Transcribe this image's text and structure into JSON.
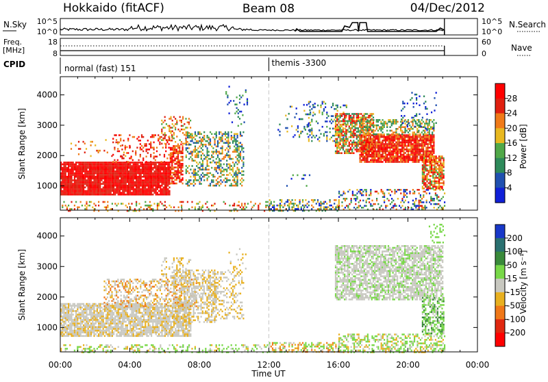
{
  "header": {
    "station": "Hokkaido (fitACF)",
    "beam": "Beam 08",
    "date": "04/Dec/2012"
  },
  "nsky_panel": {
    "left_label": "N.Sky",
    "right_label": "N.Search",
    "left_ticks": [
      "10^5",
      "10^0"
    ],
    "right_ticks": [
      "10^5",
      "10^0"
    ]
  },
  "freq_panel": {
    "left_label_line1": "Freq.",
    "left_label_line2": "[MHz]",
    "right_label": "Nave",
    "left_ticks": [
      "18",
      "8"
    ],
    "right_ticks": [
      "60",
      "0"
    ]
  },
  "cpid_panel": {
    "label": "CPID",
    "segments": [
      {
        "start_hour": 0.0,
        "text": "normal (fast) 151"
      },
      {
        "start_hour": 12.0,
        "text": "themis -3300"
      }
    ]
  },
  "time_axis": {
    "title": "Time UT",
    "ticks": [
      "00:00",
      "04:00",
      "08:00",
      "12:00",
      "16:00",
      "20:00",
      "00:00"
    ]
  },
  "chart_data": [
    {
      "type": "heatmap",
      "name": "power",
      "ylabel": "Slant Range [km]",
      "y_ticks": [
        1000,
        2000,
        3000,
        4000
      ],
      "ylim": [
        200,
        4600
      ],
      "xlim_hours": [
        0,
        24
      ],
      "data_end_hour": 22.1,
      "colorbar_label": "Power [dB]",
      "colorbar_ticks": [
        "28",
        "24",
        "20",
        "16",
        "12",
        "8",
        "4"
      ],
      "colors": [
        "#1020d8",
        "#2050b0",
        "#2e8a5a",
        "#50a848",
        "#e8b820",
        "#f07a18",
        "#e02010",
        "#ff0000"
      ],
      "scatter_regions": [
        {
          "h0": 0.0,
          "h1": 6.3,
          "r0": 700,
          "r1": 1800,
          "d": 0.95,
          "c": [
            6,
            7
          ]
        },
        {
          "h0": 6.3,
          "h1": 7.0,
          "r0": 1100,
          "r1": 2400,
          "d": 0.7,
          "c": [
            5,
            6,
            7
          ]
        },
        {
          "h0": 3.0,
          "h1": 6.5,
          "r0": 1800,
          "r1": 2700,
          "d": 0.2,
          "c": [
            5,
            6,
            7
          ]
        },
        {
          "h0": 0.5,
          "h1": 4.0,
          "r0": 2000,
          "r1": 2600,
          "d": 0.07,
          "c": [
            4,
            5,
            6
          ]
        },
        {
          "h0": 5.8,
          "h1": 7.5,
          "r0": 2400,
          "r1": 3300,
          "d": 0.3,
          "c": [
            3,
            4,
            5,
            6
          ]
        },
        {
          "h0": 7.2,
          "h1": 10.5,
          "r0": 1000,
          "r1": 2800,
          "d": 0.4,
          "c": [
            1,
            2,
            3,
            4,
            5
          ]
        },
        {
          "h0": 9.5,
          "h1": 10.8,
          "r0": 3000,
          "r1": 4300,
          "d": 0.12,
          "c": [
            0,
            1,
            2,
            3
          ]
        },
        {
          "h0": 12.0,
          "h1": 16.0,
          "r0": 200,
          "r1": 560,
          "d": 0.45,
          "c": [
            0,
            1,
            2,
            3,
            4,
            5
          ]
        },
        {
          "h0": 16.0,
          "h1": 22.1,
          "r0": 200,
          "r1": 900,
          "d": 0.3,
          "c": [
            0,
            1,
            2,
            3,
            4,
            5,
            6
          ]
        },
        {
          "h0": 0.0,
          "h1": 12.0,
          "r0": 200,
          "r1": 500,
          "d": 0.2,
          "c": [
            3,
            4,
            5,
            6
          ]
        },
        {
          "h0": 12.5,
          "h1": 14.5,
          "r0": 2600,
          "r1": 3700,
          "d": 0.1,
          "c": [
            0,
            1,
            2,
            4
          ]
        },
        {
          "h0": 14.0,
          "h1": 16.5,
          "r0": 2500,
          "r1": 3800,
          "d": 0.2,
          "c": [
            0,
            1,
            2,
            3,
            4
          ]
        },
        {
          "h0": 15.8,
          "h1": 18.0,
          "r0": 2100,
          "r1": 3400,
          "d": 0.7,
          "c": [
            2,
            3,
            4,
            5,
            6,
            7
          ]
        },
        {
          "h0": 17.2,
          "h1": 21.5,
          "r0": 1800,
          "r1": 2700,
          "d": 0.9,
          "c": [
            5,
            6,
            7
          ]
        },
        {
          "h0": 17.2,
          "h1": 21.5,
          "r0": 2700,
          "r1": 3200,
          "d": 0.5,
          "c": [
            2,
            3,
            4,
            5
          ]
        },
        {
          "h0": 20.8,
          "h1": 22.1,
          "r0": 900,
          "r1": 2000,
          "d": 0.75,
          "c": [
            3,
            4,
            5,
            6,
            7
          ]
        },
        {
          "h0": 19.5,
          "h1": 21.6,
          "r0": 2800,
          "r1": 4100,
          "d": 0.12,
          "c": [
            0,
            1,
            2
          ]
        },
        {
          "h0": 13.0,
          "h1": 14.5,
          "r0": 1000,
          "r1": 1500,
          "d": 0.1,
          "c": [
            0,
            1,
            3
          ]
        }
      ]
    },
    {
      "type": "heatmap",
      "name": "velocity",
      "ylabel": "Slant Range [km]",
      "y_ticks": [
        1000,
        2000,
        3000,
        4000
      ],
      "ylim": [
        200,
        4600
      ],
      "xlim_hours": [
        0,
        24
      ],
      "data_end_hour": 22.1,
      "colorbar_label": "Velocity [m s⁻¹]",
      "colorbar_ticks": [
        "200",
        "100",
        "50",
        "15",
        "-15",
        "-50",
        "-100",
        "-200"
      ],
      "colors": [
        "#1838c8",
        "#2a7070",
        "#3a8a3a",
        "#78d848",
        "#c8c8c0",
        "#e8b020",
        "#f07818",
        "#e02810",
        "#ff0000"
      ],
      "scatter_regions": [
        {
          "h0": 0.0,
          "h1": 7.5,
          "r0": 700,
          "r1": 1800,
          "d": 0.8,
          "c": [
            4,
            4,
            4,
            5
          ]
        },
        {
          "h0": 2.5,
          "h1": 7.8,
          "r0": 1700,
          "r1": 2600,
          "d": 0.45,
          "c": [
            4,
            4,
            5,
            6
          ]
        },
        {
          "h0": 6.5,
          "h1": 9.0,
          "r0": 1200,
          "r1": 2900,
          "d": 0.5,
          "c": [
            4,
            4,
            5
          ]
        },
        {
          "h0": 8.5,
          "h1": 10.5,
          "r0": 1300,
          "r1": 2900,
          "d": 0.3,
          "c": [
            4,
            5
          ]
        },
        {
          "h0": 0.0,
          "h1": 12.0,
          "r0": 200,
          "r1": 450,
          "d": 0.3,
          "c": [
            3,
            3,
            5,
            4
          ]
        },
        {
          "h0": 12.0,
          "h1": 16.0,
          "r0": 200,
          "r1": 520,
          "d": 0.5,
          "c": [
            5,
            6,
            4,
            3
          ]
        },
        {
          "h0": 16.0,
          "h1": 22.1,
          "r0": 200,
          "r1": 800,
          "d": 0.45,
          "c": [
            3,
            3,
            4,
            5
          ]
        },
        {
          "h0": 15.8,
          "h1": 22.0,
          "r0": 1900,
          "r1": 3700,
          "d": 0.7,
          "c": [
            4,
            4,
            4,
            3
          ]
        },
        {
          "h0": 20.8,
          "h1": 22.1,
          "r0": 800,
          "r1": 2000,
          "d": 0.6,
          "c": [
            4,
            3,
            3,
            2
          ]
        },
        {
          "h0": 21.2,
          "h1": 22.1,
          "r0": 3800,
          "r1": 4400,
          "d": 0.25,
          "c": [
            3,
            3
          ]
        },
        {
          "h0": 5.8,
          "h1": 7.5,
          "r0": 2400,
          "r1": 3300,
          "d": 0.25,
          "c": [
            4,
            5
          ]
        },
        {
          "h0": 9.5,
          "h1": 10.8,
          "r0": 2900,
          "r1": 3600,
          "d": 0.1,
          "c": [
            4,
            5
          ]
        }
      ]
    }
  ]
}
